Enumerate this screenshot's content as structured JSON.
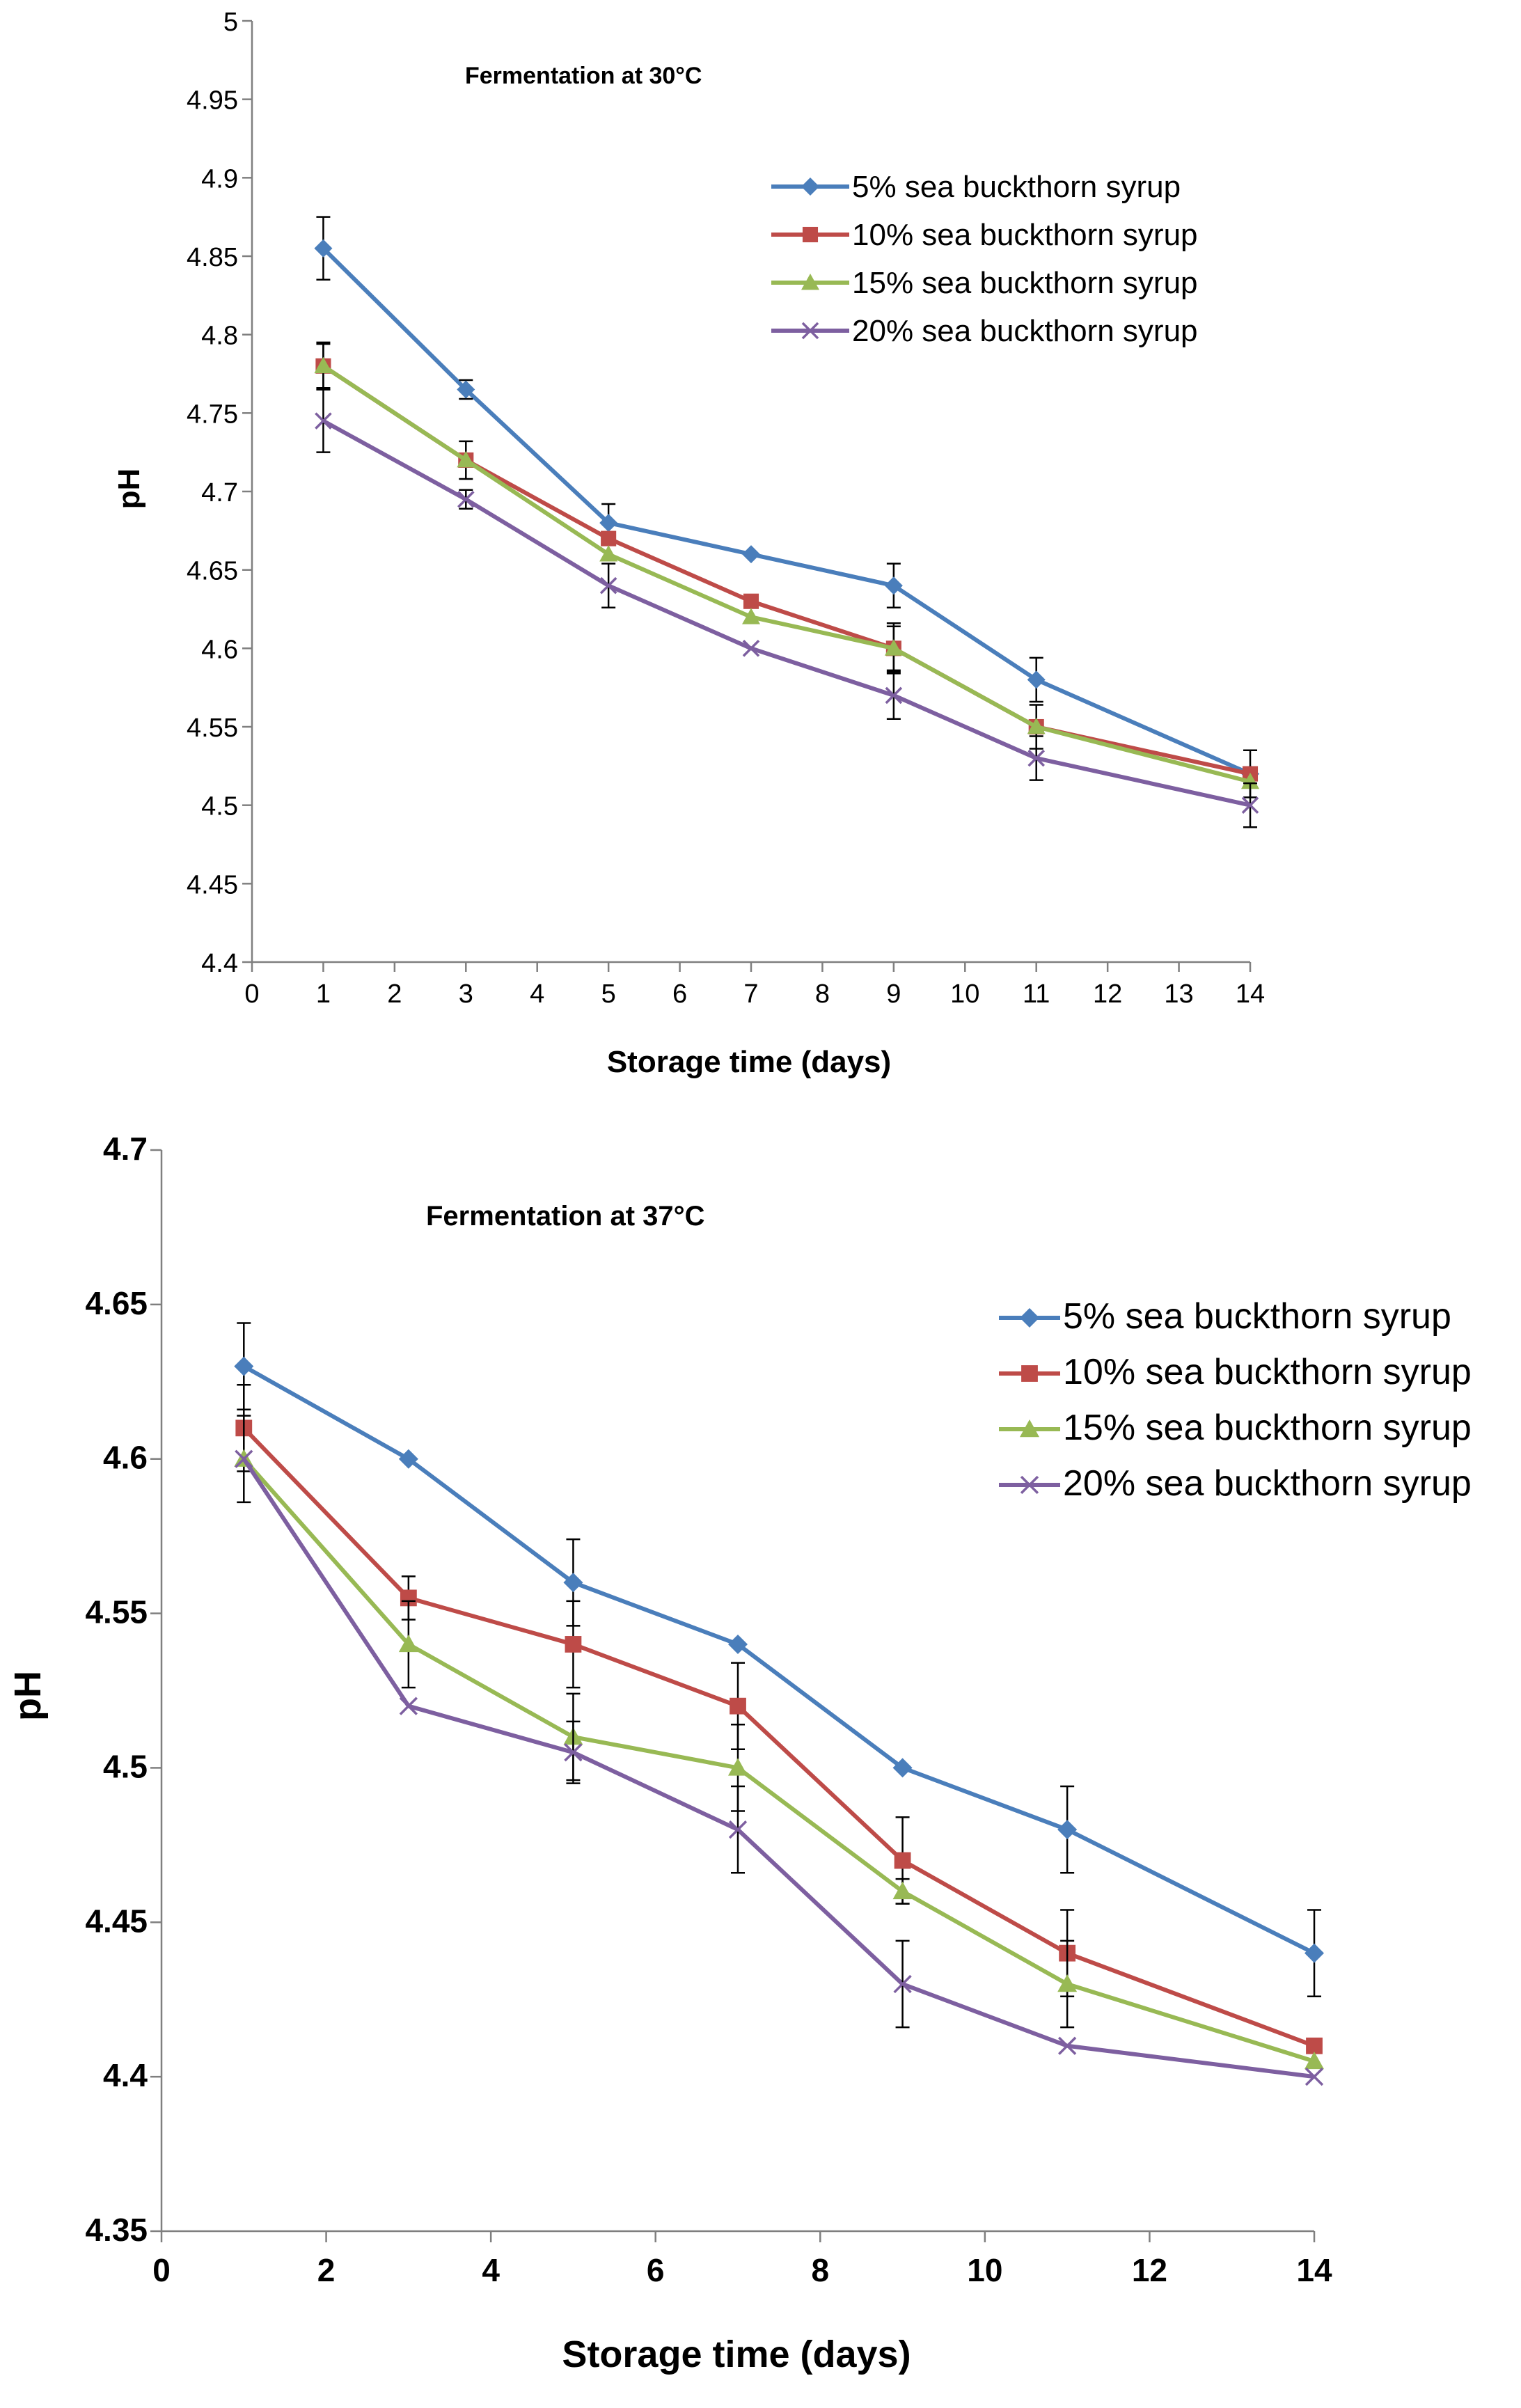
{
  "chart_data": [
    {
      "type": "line",
      "annotation": "Fermentation at 30°C",
      "xlabel": "Storage time (days)",
      "ylabel": "pH",
      "xlim": [
        0,
        14
      ],
      "ylim": [
        4.4,
        5
      ],
      "x_ticks": [
        0,
        1,
        2,
        3,
        4,
        5,
        6,
        7,
        8,
        9,
        10,
        11,
        12,
        13,
        14
      ],
      "y_ticks": [
        "4.4",
        "4.45",
        "4.5",
        "4.55",
        "4.6",
        "4.65",
        "4.7",
        "4.75",
        "4.8",
        "4.85",
        "4.9",
        "4.95",
        "5"
      ],
      "x": [
        1,
        3,
        5,
        7,
        9,
        11,
        14
      ],
      "legend_position": "top-right",
      "series": [
        {
          "name": "5% sea buckthorn syrup",
          "color": "#4A7EBB",
          "marker": "diamond",
          "values": [
            4.855,
            4.765,
            4.68,
            4.66,
            4.64,
            4.58,
            4.52
          ],
          "errors": [
            0.02,
            0.006,
            0.012,
            0,
            0.014,
            0.014,
            0
          ]
        },
        {
          "name": "10% sea buckthorn syrup",
          "color": "#BE4B48",
          "marker": "square",
          "values": [
            4.78,
            4.72,
            4.67,
            4.63,
            4.6,
            4.55,
            4.52
          ],
          "errors": [
            0.014,
            0.012,
            0,
            0,
            0.014,
            0,
            0.015
          ]
        },
        {
          "name": "15% sea buckthorn syrup",
          "color": "#98B954",
          "marker": "triangle",
          "values": [
            4.78,
            4.72,
            4.66,
            4.62,
            4.6,
            4.55,
            4.515
          ],
          "errors": [
            0.015,
            0,
            0,
            0,
            0.016,
            0.014,
            0
          ]
        },
        {
          "name": "20% sea buckthorn syrup",
          "color": "#7D5FA0",
          "marker": "x",
          "values": [
            4.745,
            4.695,
            4.64,
            4.6,
            4.57,
            4.53,
            4.5
          ],
          "errors": [
            0.02,
            0.006,
            0.014,
            0,
            0.015,
            0.014,
            0.014
          ]
        }
      ]
    },
    {
      "type": "line",
      "annotation": "Fermentation at 37°C",
      "xlabel": "Storage time (days)",
      "ylabel": "pH",
      "xlim": [
        0,
        14
      ],
      "ylim": [
        4.35,
        4.7
      ],
      "x_ticks": [
        0,
        2,
        4,
        6,
        8,
        10,
        12,
        14
      ],
      "y_ticks": [
        "4.35",
        "4.4",
        "4.45",
        "4.5",
        "4.55",
        "4.6",
        "4.65",
        "4.7"
      ],
      "x": [
        1,
        3,
        5,
        7,
        9,
        11,
        14
      ],
      "legend_position": "top-right",
      "series": [
        {
          "name": "5% sea buckthorn syrup",
          "color": "#4A7EBB",
          "marker": "diamond",
          "values": [
            4.63,
            4.6,
            4.56,
            4.54,
            4.5,
            4.48,
            4.44
          ],
          "errors": [
            0.014,
            0,
            0.014,
            0,
            0,
            0.014,
            0.014
          ]
        },
        {
          "name": "10% sea buckthorn syrup",
          "color": "#BE4B48",
          "marker": "square",
          "values": [
            4.61,
            4.555,
            4.54,
            4.52,
            4.47,
            4.44,
            4.41
          ],
          "errors": [
            0.014,
            0.007,
            0.014,
            0.014,
            0.014,
            0.014,
            0
          ]
        },
        {
          "name": "15% sea buckthorn syrup",
          "color": "#98B954",
          "marker": "triangle",
          "values": [
            4.6,
            4.54,
            4.51,
            4.5,
            4.46,
            4.43,
            4.405
          ],
          "errors": [
            0.014,
            0.014,
            0.014,
            0.014,
            0.004,
            0.014,
            0
          ]
        },
        {
          "name": "20% sea buckthorn syrup",
          "color": "#7D5FA0",
          "marker": "x",
          "values": [
            4.6,
            4.52,
            4.505,
            4.48,
            4.43,
            4.41,
            4.4
          ],
          "errors": [
            0,
            0,
            0.01,
            0.014,
            0.014,
            0,
            0
          ]
        }
      ]
    }
  ]
}
